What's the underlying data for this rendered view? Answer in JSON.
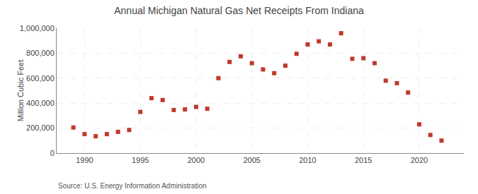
{
  "chart_data": {
    "type": "scatter",
    "title": "Annual Michigan Natural Gas Net Receipts From Indiana",
    "ylabel": "Million Cubic Feet",
    "annotations": [
      "Source: U.S. Energy Information Administration"
    ],
    "x": [
      1989,
      1990,
      1991,
      1992,
      1993,
      1994,
      1995,
      1996,
      1997,
      1998,
      1999,
      2000,
      2001,
      2002,
      2003,
      2004,
      2005,
      2006,
      2007,
      2008,
      2009,
      2010,
      2011,
      2012,
      2013,
      2014,
      2015,
      2016,
      2017,
      2018,
      2019,
      2020,
      2021,
      2022
    ],
    "values": [
      205000,
      152000,
      135000,
      152000,
      170000,
      185000,
      330000,
      440000,
      425000,
      345000,
      350000,
      370000,
      355000,
      600000,
      730000,
      775000,
      720000,
      670000,
      640000,
      700000,
      795000,
      870000,
      895000,
      870000,
      960000,
      755000,
      760000,
      720000,
      580000,
      560000,
      485000,
      230000,
      145000,
      100000
    ],
    "color": "#c0392b",
    "marker": "square",
    "xlim": [
      1987.5,
      2024
    ],
    "xticks": [
      1990,
      1995,
      2000,
      2005,
      2010,
      2015,
      2020
    ],
    "ylim": [
      0,
      1000000
    ],
    "yticks": [
      0,
      {
        "value": 200000,
        "label": "200,000"
      },
      {
        "value": 400000,
        "label": "400,000"
      },
      {
        "value": 600000,
        "label": "600,000"
      },
      {
        "value": 800000,
        "label": "800,000"
      },
      {
        "value": 1000000,
        "label": "1,000,000"
      }
    ],
    "grid": true
  }
}
